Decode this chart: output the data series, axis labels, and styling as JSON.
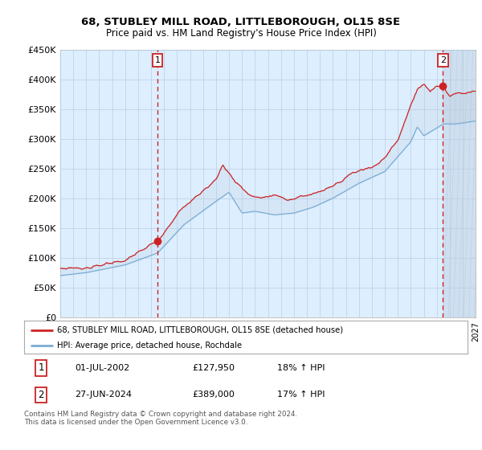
{
  "title": "68, STUBLEY MILL ROAD, LITTLEBOROUGH, OL15 8SE",
  "subtitle": "Price paid vs. HM Land Registry's House Price Index (HPI)",
  "legend_line1": "68, STUBLEY MILL ROAD, LITTLEBOROUGH, OL15 8SE (detached house)",
  "legend_line2": "HPI: Average price, detached house, Rochdale",
  "annotation1_date": "01-JUL-2002",
  "annotation1_price": "£127,950",
  "annotation1_hpi": "18% ↑ HPI",
  "annotation2_date": "27-JUN-2024",
  "annotation2_price": "£389,000",
  "annotation2_hpi": "17% ↑ HPI",
  "footer": "Contains HM Land Registry data © Crown copyright and database right 2024.\nThis data is licensed under the Open Government Licence v3.0.",
  "sale1_year": 2002.5,
  "sale1_value": 127950,
  "sale2_year": 2024.48,
  "sale2_value": 389000,
  "y_min": 0,
  "y_max": 450000,
  "x_min": 1995,
  "x_max": 2027,
  "hpi_color": "#7aadd4",
  "price_color": "#cc2222",
  "bg_color": "#ddeeff",
  "grid_color": "#b8cfe0",
  "vline_color": "#cc2222",
  "title_color": "#000000",
  "box_border_color": "#cc2222",
  "hatch_color": "#c8daea"
}
